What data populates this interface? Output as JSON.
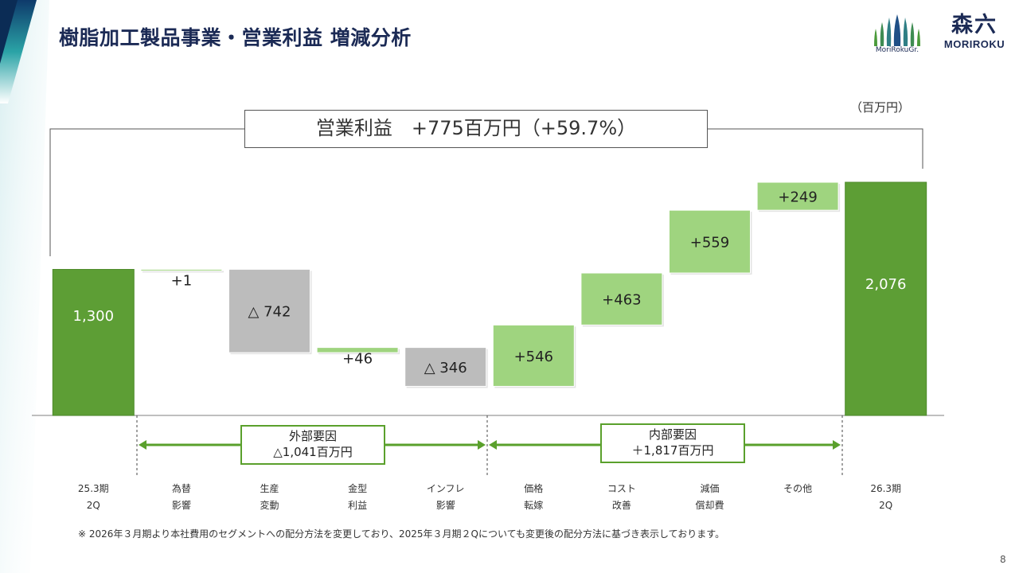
{
  "title": "樹脂加工製品事業・営業利益 増減分析",
  "logos": {
    "group_text": "MoriRokuGr.",
    "company_kanji": "森六",
    "company_roman": "MORIROKU"
  },
  "unit": "（百万円）",
  "headline": "営業利益　+775百万円（+59.7%）",
  "factor_groups": {
    "external": {
      "title": "外部要因",
      "value": "△1,041百万円"
    },
    "internal": {
      "title": "内部要因",
      "value": "＋1,817百万円"
    }
  },
  "footnote": "※ 2026年３月期より本社費用のセグメントへの配分方法を変更しており、2025年３月期２Qについても変更後の配分方法に基づき表示しております。",
  "page_number": "8",
  "colors": {
    "total": "#5d9e35",
    "increase": "#9fd47f",
    "decrease": "#bcbcbc",
    "title": "#1b2a55",
    "arrow": "#5aa02c"
  },
  "chart_data": {
    "type": "waterfall",
    "title": "営業利益　+775百万円（+59.7%）",
    "unit": "百万円",
    "categories": [
      [
        "25.3期",
        "2Q"
      ],
      [
        "為替",
        "影響"
      ],
      [
        "生産",
        "変動"
      ],
      [
        "金型",
        "利益"
      ],
      [
        "インフレ",
        "影響"
      ],
      [
        "価格",
        "転嫁"
      ],
      [
        "コスト",
        "改善"
      ],
      [
        "減価",
        "償却費"
      ],
      [
        "その他",
        ""
      ],
      [
        "26.3期",
        "2Q"
      ]
    ],
    "values": [
      1300,
      1,
      -742,
      46,
      -346,
      546,
      463,
      559,
      249,
      2076
    ],
    "kinds": [
      "total",
      "increase",
      "decrease",
      "increase",
      "decrease",
      "increase",
      "increase",
      "increase",
      "increase",
      "total"
    ],
    "labels": [
      "1,300",
      "+1",
      "△ 742",
      "+46",
      "△ 346",
      "+546",
      "+463",
      "+559",
      "+249",
      "2,076"
    ],
    "ylim": [
      0,
      2076
    ]
  }
}
